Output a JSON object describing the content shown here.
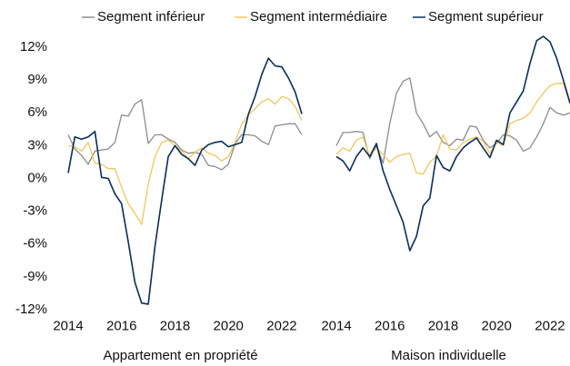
{
  "chart_data": [
    {
      "type": "line",
      "xlabel": "Appartement en propriété",
      "x": [
        2014,
        2014.25,
        2014.5,
        2014.75,
        2015,
        2015.25,
        2015.5,
        2015.75,
        2016,
        2016.25,
        2016.5,
        2016.75,
        2017,
        2017.25,
        2017.5,
        2017.75,
        2018,
        2018.25,
        2018.5,
        2018.75,
        2019,
        2019.25,
        2019.5,
        2019.75,
        2020,
        2020.25,
        2020.5,
        2020.75,
        2021,
        2021.25,
        2021.5,
        2021.75,
        2022,
        2022.25,
        2022.5,
        2022.75
      ],
      "xlim": [
        2014,
        2022.75
      ],
      "xticks": [
        2014,
        2016,
        2018,
        2020,
        2022
      ],
      "ylim": [
        -12.8,
        13.2
      ],
      "yticks": [
        {
          "value": -12,
          "label": "-12%"
        },
        {
          "value": -9,
          "label": "-9%"
        },
        {
          "value": -6,
          "label": "-6%"
        },
        {
          "value": -3,
          "label": "-3%"
        },
        {
          "value": 0,
          "label": "0%"
        },
        {
          "value": 3,
          "label": "3%"
        },
        {
          "value": 6,
          "label": "6%"
        },
        {
          "value": 9,
          "label": "9%"
        },
        {
          "value": 12,
          "label": "12%"
        }
      ],
      "series": [
        {
          "name": "Segment inférieur",
          "color": "#8c8c8c",
          "values": [
            4.0,
            2.7,
            2.1,
            1.3,
            2.5,
            2.6,
            2.7,
            3.3,
            5.8,
            5.7,
            6.8,
            7.2,
            3.2,
            4.0,
            4.0,
            3.6,
            3.3,
            2.6,
            2.3,
            2.4,
            2.2,
            1.2,
            1.1,
            0.8,
            1.3,
            3.2,
            4.0,
            4.0,
            3.9,
            3.4,
            3.1,
            4.8,
            4.9,
            5.0,
            5.0,
            4.0
          ]
        },
        {
          "name": "Segment intermédiaire",
          "color": "#f0c75e",
          "values": [
            3.0,
            2.9,
            2.5,
            3.3,
            1.4,
            1.3,
            0.9,
            0.9,
            -0.8,
            -2.3,
            -3.2,
            -4.2,
            -0.5,
            2.0,
            3.3,
            3.5,
            3.0,
            2.5,
            1.8,
            2.4,
            2.8,
            2.3,
            2.1,
            1.6,
            2.0,
            3.3,
            5.0,
            5.8,
            6.4,
            7.0,
            7.3,
            6.8,
            7.5,
            7.3,
            6.6,
            5.3
          ]
        },
        {
          "name": "Segment supérieur",
          "color": "#0b2d5b",
          "values": [
            0.5,
            3.8,
            3.6,
            3.8,
            4.3,
            0.1,
            0.0,
            -1.4,
            -2.3,
            -5.8,
            -9.5,
            -11.4,
            -11.5,
            -6.2,
            -2.0,
            2.0,
            3.0,
            2.2,
            1.8,
            1.2,
            2.6,
            3.1,
            3.3,
            3.4,
            2.9,
            3.1,
            3.3,
            5.9,
            7.5,
            9.5,
            11.0,
            10.3,
            10.2,
            9.2,
            7.9,
            5.9
          ]
        }
      ]
    },
    {
      "type": "line",
      "xlabel": "Maison individuelle",
      "x": [
        2014,
        2014.25,
        2014.5,
        2014.75,
        2015,
        2015.25,
        2015.5,
        2015.75,
        2016,
        2016.25,
        2016.5,
        2016.75,
        2017,
        2017.25,
        2017.5,
        2017.75,
        2018,
        2018.25,
        2018.5,
        2018.75,
        2019,
        2019.25,
        2019.5,
        2019.75,
        2020,
        2020.25,
        2020.5,
        2020.75,
        2021,
        2021.25,
        2021.5,
        2021.75,
        2022,
        2022.25,
        2022.5,
        2022.75
      ],
      "xlim": [
        2014,
        2022.75
      ],
      "xticks": [
        2014,
        2016,
        2018,
        2020,
        2022
      ],
      "ylim": [
        -12.8,
        13.2
      ],
      "series": [
        {
          "name": "Segment inférieur",
          "color": "#8c8c8c",
          "values": [
            3.0,
            4.2,
            4.2,
            4.3,
            4.2,
            1.8,
            3.0,
            1.4,
            5.0,
            7.8,
            8.9,
            9.2,
            6.0,
            5.0,
            3.8,
            4.3,
            3.3,
            3.0,
            3.6,
            3.5,
            4.8,
            4.7,
            3.5,
            2.8,
            3.2,
            4.0,
            3.9,
            3.5,
            2.5,
            2.8,
            3.8,
            5.0,
            6.5,
            6.0,
            5.8,
            6.0
          ]
        },
        {
          "name": "Segment intermédiaire",
          "color": "#f0c75e",
          "values": [
            2.2,
            2.8,
            2.5,
            3.5,
            3.8,
            2.0,
            2.8,
            2.2,
            1.5,
            2.0,
            2.2,
            2.3,
            0.5,
            0.4,
            1.5,
            2.0,
            4.0,
            2.7,
            2.6,
            3.3,
            3.6,
            3.8,
            3.4,
            2.3,
            3.3,
            3.0,
            5.0,
            5.3,
            5.5,
            6.0,
            7.0,
            7.8,
            8.5,
            8.7,
            8.7,
            6.8
          ]
        },
        {
          "name": "Segment supérieur",
          "color": "#0b2d5b",
          "values": [
            2.0,
            1.6,
            0.7,
            2.0,
            2.8,
            2.0,
            3.2,
            0.7,
            -1.0,
            -2.5,
            -4.0,
            -6.6,
            -5.3,
            -2.5,
            -1.8,
            2.1,
            1.0,
            0.7,
            2.0,
            2.8,
            3.3,
            3.7,
            2.8,
            1.9,
            3.5,
            3.1,
            6.0,
            7.0,
            8.0,
            10.5,
            12.6,
            13.0,
            12.5,
            11.0,
            9.0,
            6.9
          ]
        }
      ]
    }
  ]
}
